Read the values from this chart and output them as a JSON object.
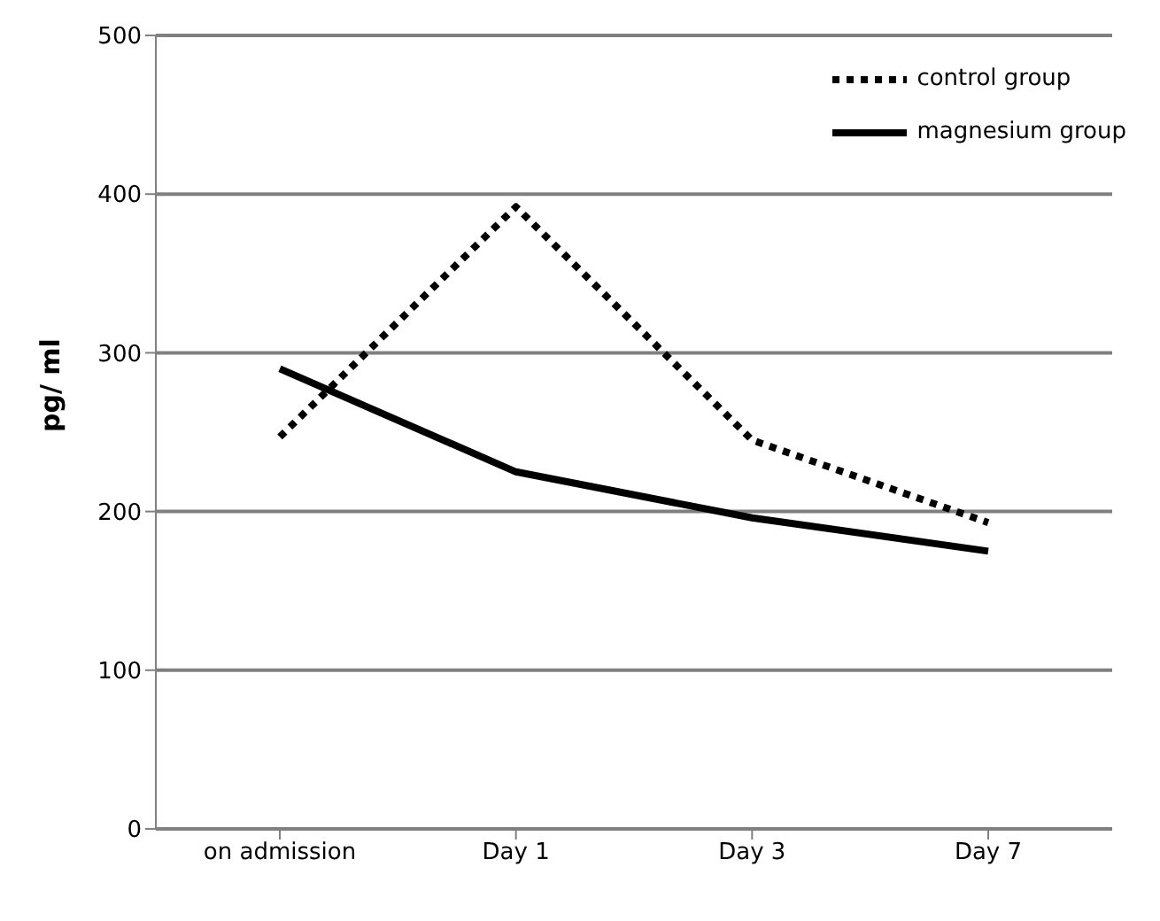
{
  "chart_data": {
    "type": "line",
    "ylabel": "pg/ ml",
    "categories": [
      "on admission",
      "Day 1",
      "Day 3",
      "Day 7"
    ],
    "series": [
      {
        "name": "control group",
        "color": "#000000",
        "values": [
          247,
          392,
          245,
          193
        ],
        "line_style": "dotted"
      },
      {
        "name": "magnesium group",
        "color": "#000000",
        "values": [
          290,
          225,
          196,
          175
        ],
        "line_style": "solid"
      }
    ],
    "ylim": [
      0,
      500
    ],
    "yticks": [
      0,
      100,
      200,
      300,
      400,
      500
    ],
    "grid": "y",
    "legend": "top right",
    "marker": "none"
  }
}
